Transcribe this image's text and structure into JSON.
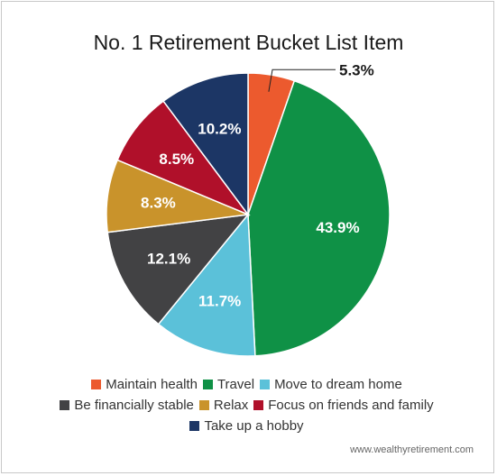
{
  "chart_data": {
    "type": "pie",
    "title": "No. 1 Retirement Bucket List Item",
    "slices": [
      {
        "label": "Maintain health",
        "value": 5.3,
        "display": "5.3%",
        "color": "#ec5a2e"
      },
      {
        "label": "Travel",
        "value": 43.9,
        "display": "43.9%",
        "color": "#0f9146"
      },
      {
        "label": "Move to dream home",
        "value": 11.7,
        "display": "11.7%",
        "color": "#5bc1d9"
      },
      {
        "label": "Be financially stable",
        "value": 12.1,
        "display": "12.1%",
        "color": "#424244"
      },
      {
        "label": "Relax",
        "value": 8.3,
        "display": "8.3%",
        "color": "#c9932b"
      },
      {
        "label": "Focus on friends and family",
        "value": 8.5,
        "display": "8.5%",
        "color": "#b0102a"
      },
      {
        "label": "Take up a hobby",
        "value": 10.2,
        "display": "10.2%",
        "color": "#1c3665"
      }
    ],
    "legend_position": "bottom"
  },
  "footer": {
    "source": "www.wealthyretirement.com"
  }
}
